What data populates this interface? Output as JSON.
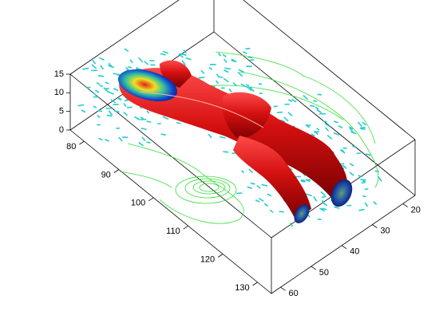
{
  "chart_data": {
    "type": "3d-volume",
    "xlim": [
      76,
      134
    ],
    "xticks": [
      80,
      90,
      100,
      110,
      120,
      130
    ],
    "ylim": [
      16,
      63
    ],
    "yticks": [
      20,
      30,
      40,
      50,
      60
    ],
    "zlim": [
      0,
      15
    ],
    "zticks": [
      0,
      5,
      10,
      15
    ]
  }
}
